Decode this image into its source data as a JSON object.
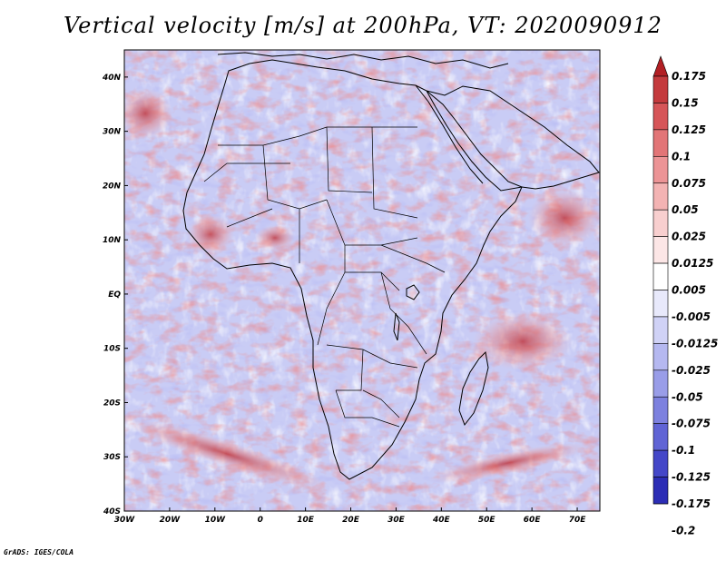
{
  "title": "Vertical velocity [m/s] at 200hPa, VT: 2020090912",
  "credit": "GrADS: IGES/COLA",
  "map": {
    "lon_range": [
      -30,
      75
    ],
    "lat_range": [
      -40,
      45
    ],
    "x_ticks": [
      "30W",
      "20W",
      "10W",
      "0",
      "10E",
      "20E",
      "30E",
      "40E",
      "50E",
      "60E",
      "70E"
    ],
    "x_tick_values": [
      -30,
      -20,
      -10,
      0,
      10,
      20,
      30,
      40,
      50,
      60,
      70
    ],
    "y_ticks": [
      "40N",
      "30N",
      "20N",
      "10N",
      "EQ",
      "10S",
      "20S",
      "30S",
      "40S"
    ],
    "y_tick_values": [
      40,
      30,
      20,
      10,
      0,
      -10,
      -20,
      -30,
      -40
    ],
    "base_color": "#c9ccf5"
  },
  "colorbar": {
    "labels": [
      "0.175",
      "0.15",
      "0.125",
      "0.1",
      "0.075",
      "0.05",
      "0.025",
      "0.0125",
      "0.005",
      "-0.005",
      "-0.0125",
      "-0.025",
      "-0.05",
      "-0.075",
      "-0.1",
      "-0.125",
      "-0.175",
      "-0.2"
    ],
    "colors": [
      "#b21f24",
      "#c43a3d",
      "#d65558",
      "#e27577",
      "#ec9496",
      "#f3b3b3",
      "#f8cfcf",
      "#fce6e6",
      "#ffffff",
      "#e8e9fb",
      "#d0d2f6",
      "#b5b8f0",
      "#999de8",
      "#7d81df",
      "#6064d5",
      "#4447c8",
      "#2c2db5",
      "#1c1aa0"
    ]
  }
}
